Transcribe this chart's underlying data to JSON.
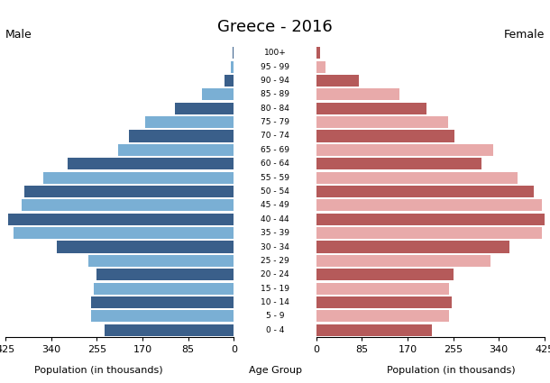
{
  "title": "Greece - 2016",
  "age_groups": [
    "0 - 4",
    "5 - 9",
    "10 - 14",
    "15 - 19",
    "20 - 24",
    "25 - 29",
    "30 - 34",
    "35 - 39",
    "40 - 44",
    "45 - 49",
    "50 - 54",
    "55 - 59",
    "60 - 64",
    "65 - 69",
    "70 - 74",
    "75 - 79",
    "80 - 84",
    "85 - 89",
    "90 - 94",
    "95 - 99",
    "100+"
  ],
  "male": [
    240,
    265,
    265,
    260,
    255,
    270,
    330,
    410,
    420,
    395,
    390,
    355,
    310,
    215,
    195,
    165,
    110,
    60,
    18,
    5,
    2
  ],
  "female": [
    215,
    248,
    252,
    248,
    255,
    325,
    360,
    420,
    425,
    420,
    405,
    375,
    308,
    330,
    258,
    245,
    205,
    155,
    80,
    18,
    8
  ],
  "male_dark": "#3a5f8a",
  "male_light": "#7aafd4",
  "female_dark": "#b55a5a",
  "female_light": "#e8aaaa",
  "xlabel_left": "Population (in thousands)",
  "xlabel_center": "Age Group",
  "xlabel_right": "Population (in thousands)",
  "label_male": "Male",
  "label_female": "Female",
  "xlim": 425,
  "xticks": [
    0,
    85,
    170,
    255,
    340,
    425
  ],
  "background_color": "#ffffff",
  "bar_height": 0.85
}
